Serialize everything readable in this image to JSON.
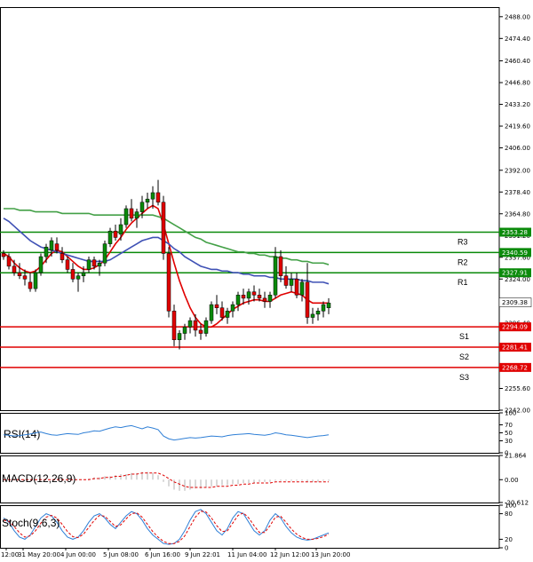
{
  "chart_data": [
    {
      "type": "candlestick",
      "title": "",
      "xlabel": "",
      "ylabel": "",
      "ylim": [
        2242.0,
        2494.0
      ],
      "price_ticks": [
        "2488.00",
        "2474.40",
        "2460.40",
        "2446.80",
        "2433.20",
        "2419.60",
        "2406.00",
        "2392.00",
        "2378.40",
        "2364.80",
        "2351.20",
        "2337.60",
        "2324.00",
        "2310.40",
        "2296.40",
        "2269.20",
        "2255.60",
        "2242.00"
      ],
      "x_tick_labels": [
        "12:00",
        "31 May 20:00",
        "4 Jun 00:00",
        "5 Jun 08:00",
        "6 Jun 16:00",
        "9 Jun 22:01",
        "11 Jun 04:00",
        "12 Jun 12:00",
        "13 Jun 20:00"
      ],
      "last_price": {
        "value": 2309.38,
        "label": "2309.38",
        "color": "#000000"
      },
      "levels": [
        {
          "name": "R3",
          "value": 2353.28,
          "label": "2353.28",
          "color": "#0a8a0a"
        },
        {
          "name": "R2",
          "value": 2340.59,
          "label": "2340.59",
          "color": "#0a8a0a"
        },
        {
          "name": "R1",
          "value": 2327.91,
          "label": "2327.91",
          "color": "#0a8a0a"
        },
        {
          "name": "S1",
          "value": 2294.09,
          "label": "2294.09",
          "color": "#e00000"
        },
        {
          "name": "S2",
          "value": 2281.41,
          "label": "2281.41",
          "color": "#e00000"
        },
        {
          "name": "S3",
          "value": 2268.72,
          "label": "2268.72",
          "color": "#e00000"
        }
      ],
      "candles": [
        [
          2340,
          2342,
          2336,
          2338
        ],
        [
          2338,
          2340,
          2330,
          2332
        ],
        [
          2332,
          2336,
          2326,
          2328
        ],
        [
          2328,
          2334,
          2324,
          2326
        ],
        [
          2326,
          2330,
          2320,
          2324
        ],
        [
          2322,
          2328,
          2316,
          2318
        ],
        [
          2318,
          2330,
          2316,
          2328
        ],
        [
          2328,
          2340,
          2326,
          2338
        ],
        [
          2338,
          2346,
          2334,
          2344
        ],
        [
          2342,
          2350,
          2338,
          2348
        ],
        [
          2346,
          2350,
          2340,
          2342
        ],
        [
          2340,
          2344,
          2334,
          2336
        ],
        [
          2336,
          2338,
          2328,
          2330
        ],
        [
          2330,
          2334,
          2322,
          2324
        ],
        [
          2324,
          2328,
          2316,
          2326
        ],
        [
          2326,
          2332,
          2322,
          2328
        ],
        [
          2330,
          2338,
          2328,
          2336
        ],
        [
          2336,
          2338,
          2330,
          2332
        ],
        [
          2332,
          2336,
          2326,
          2334
        ],
        [
          2334,
          2348,
          2332,
          2346
        ],
        [
          2346,
          2356,
          2344,
          2354
        ],
        [
          2354,
          2358,
          2348,
          2350
        ],
        [
          2352,
          2362,
          2348,
          2358
        ],
        [
          2358,
          2370,
          2356,
          2368
        ],
        [
          2368,
          2374,
          2360,
          2362
        ],
        [
          2362,
          2368,
          2356,
          2366
        ],
        [
          2366,
          2376,
          2362,
          2372
        ],
        [
          2372,
          2378,
          2368,
          2374
        ],
        [
          2374,
          2382,
          2368,
          2378
        ],
        [
          2378,
          2386,
          2370,
          2372
        ],
        [
          2372,
          2376,
          2336,
          2340
        ],
        [
          2340,
          2344,
          2300,
          2304
        ],
        [
          2304,
          2308,
          2282,
          2286
        ],
        [
          2286,
          2292,
          2280,
          2290
        ],
        [
          2290,
          2296,
          2286,
          2294
        ],
        [
          2294,
          2300,
          2290,
          2298
        ],
        [
          2298,
          2302,
          2288,
          2292
        ],
        [
          2292,
          2296,
          2286,
          2290
        ],
        [
          2290,
          2300,
          2288,
          2298
        ],
        [
          2298,
          2310,
          2296,
          2308
        ],
        [
          2308,
          2314,
          2302,
          2306
        ],
        [
          2306,
          2310,
          2298,
          2300
        ],
        [
          2300,
          2306,
          2296,
          2304
        ],
        [
          2304,
          2310,
          2300,
          2308
        ],
        [
          2308,
          2316,
          2304,
          2314
        ],
        [
          2314,
          2318,
          2308,
          2312
        ],
        [
          2312,
          2318,
          2308,
          2316
        ],
        [
          2316,
          2320,
          2310,
          2314
        ],
        [
          2314,
          2318,
          2310,
          2312
        ],
        [
          2312,
          2316,
          2306,
          2310
        ],
        [
          2310,
          2316,
          2306,
          2314
        ],
        [
          2314,
          2344,
          2312,
          2338
        ],
        [
          2338,
          2342,
          2322,
          2326
        ],
        [
          2326,
          2332,
          2318,
          2320
        ],
        [
          2320,
          2328,
          2316,
          2324
        ],
        [
          2324,
          2328,
          2312,
          2314
        ],
        [
          2314,
          2324,
          2310,
          2322
        ],
        [
          2322,
          2334,
          2296,
          2300
        ],
        [
          2300,
          2306,
          2296,
          2302
        ],
        [
          2302,
          2306,
          2298,
          2304
        ],
        [
          2304,
          2310,
          2300,
          2308
        ],
        [
          2306,
          2312,
          2302,
          2309
        ]
      ],
      "series": [
        {
          "values": [
            2340,
            2338,
            2334,
            2331,
            2329,
            2328,
            2329,
            2332,
            2336,
            2340,
            2342,
            2341,
            2338,
            2335,
            2332,
            2330,
            2330,
            2331,
            2333,
            2336,
            2341,
            2346,
            2350,
            2355,
            2359,
            2362,
            2365,
            2368,
            2370,
            2368,
            2358,
            2346,
            2334,
            2323,
            2314,
            2306,
            2300,
            2296,
            2294,
            2294,
            2296,
            2299,
            2302,
            2305,
            2307,
            2309,
            2310,
            2311,
            2311,
            2310,
            2310,
            2312,
            2314,
            2315,
            2316,
            2315,
            2314,
            2311,
            2309,
            2309,
            2309,
            2309
          ]
        },
        {
          "values": [
            2362,
            2360,
            2357,
            2354,
            2351,
            2348,
            2346,
            2344,
            2343,
            2342,
            2341,
            2340,
            2339,
            2338,
            2337,
            2336,
            2335,
            2335,
            2335,
            2335,
            2336,
            2338,
            2340,
            2342,
            2344,
            2346,
            2348,
            2349,
            2350,
            2350,
            2348,
            2346,
            2343,
            2341,
            2338,
            2336,
            2334,
            2332,
            2331,
            2330,
            2330,
            2329,
            2329,
            2328,
            2328,
            2327,
            2327,
            2326,
            2326,
            2326,
            2325,
            2325,
            2324,
            2324,
            2324,
            2324,
            2323,
            2323,
            2322,
            2322,
            2322,
            2321
          ]
        },
        {
          "values": [
            2368,
            2368,
            2368,
            2367,
            2367,
            2367,
            2366,
            2366,
            2366,
            2366,
            2366,
            2365,
            2365,
            2365,
            2365,
            2365,
            2365,
            2364,
            2364,
            2364,
            2364,
            2364,
            2364,
            2364,
            2364,
            2364,
            2364,
            2364,
            2364,
            2363,
            2362,
            2360,
            2358,
            2356,
            2354,
            2352,
            2350,
            2349,
            2347,
            2346,
            2345,
            2344,
            2343,
            2342,
            2341,
            2341,
            2340,
            2340,
            2339,
            2339,
            2338,
            2338,
            2337,
            2337,
            2336,
            2336,
            2335,
            2335,
            2334,
            2334,
            2334,
            2333
          ]
        }
      ]
    },
    {
      "type": "line",
      "title": "RSI(14)",
      "ylim": [
        0,
        100
      ],
      "y_ticks": [
        "100",
        "70",
        "50",
        "30",
        "0"
      ],
      "series": [
        {
          "values": [
            45,
            44,
            42,
            43,
            45,
            47,
            50,
            52,
            48,
            45,
            44,
            46,
            48,
            47,
            46,
            50,
            52,
            55,
            54,
            58,
            62,
            65,
            63,
            66,
            68,
            64,
            60,
            65,
            62,
            58,
            42,
            35,
            32,
            34,
            36,
            38,
            37,
            38,
            40,
            42,
            41,
            40,
            43,
            45,
            46,
            47,
            48,
            46,
            45,
            44,
            46,
            50,
            48,
            45,
            44,
            42,
            40,
            38,
            40,
            42,
            43,
            45
          ]
        }
      ]
    },
    {
      "type": "bar",
      "title": "MACD(12,26,9)",
      "ylim": [
        -20.612,
        21.864
      ],
      "y_ticks": [
        "21.864",
        "0.00",
        "-20.612"
      ],
      "values": [
        0,
        0,
        0,
        0,
        0,
        0,
        0,
        0,
        0,
        0,
        0,
        0,
        0,
        0,
        0,
        0,
        1,
        2,
        2,
        3,
        3,
        4,
        5,
        5,
        6,
        6,
        7,
        7,
        6,
        4,
        -2,
        -6,
        -9,
        -10,
        -10,
        -9,
        -8,
        -8,
        -7,
        -6,
        -6,
        -5,
        -5,
        -4,
        -4,
        -3,
        -3,
        -3,
        -2,
        -2,
        -2,
        -1,
        -1,
        -1,
        -1,
        -1,
        -1,
        -2,
        -2,
        -2,
        -1,
        -1
      ],
      "series": [
        {
          "values": [
            0,
            0,
            0,
            0,
            0,
            0,
            0,
            0,
            0,
            0,
            0,
            0,
            0,
            0,
            0,
            0,
            0,
            1,
            1,
            2,
            2,
            3,
            3,
            4,
            5,
            5,
            6,
            6,
            6,
            6,
            4,
            1,
            -2,
            -4,
            -6,
            -7,
            -7,
            -7,
            -7,
            -7,
            -6,
            -6,
            -6,
            -5,
            -5,
            -4,
            -4,
            -3,
            -3,
            -3,
            -3,
            -2,
            -2,
            -2,
            -2,
            -2,
            -2,
            -2,
            -2,
            -2,
            -2,
            -2
          ]
        }
      ]
    },
    {
      "type": "line",
      "title": "Stoch(9,6,3)",
      "ylim": [
        0,
        100
      ],
      "y_ticks": [
        "100",
        "80",
        "20",
        "0"
      ],
      "series": [
        {
          "values": [
            70,
            60,
            40,
            25,
            20,
            30,
            50,
            70,
            80,
            75,
            60,
            40,
            25,
            20,
            25,
            40,
            60,
            75,
            80,
            70,
            55,
            45,
            60,
            75,
            85,
            80,
            65,
            45,
            30,
            20,
            10,
            8,
            10,
            20,
            40,
            65,
            85,
            90,
            80,
            60,
            40,
            30,
            45,
            70,
            85,
            80,
            60,
            40,
            30,
            40,
            65,
            80,
            70,
            50,
            35,
            25,
            20,
            18,
            20,
            25,
            30,
            35
          ]
        },
        {
          "values": [
            65,
            62,
            50,
            35,
            25,
            28,
            40,
            58,
            72,
            76,
            70,
            55,
            38,
            26,
            24,
            32,
            48,
            64,
            76,
            74,
            62,
            50,
            54,
            68,
            80,
            82,
            72,
            55,
            38,
            25,
            15,
            10,
            10,
            15,
            28,
            50,
            72,
            86,
            84,
            70,
            52,
            38,
            40,
            58,
            76,
            82,
            70,
            52,
            36,
            36,
            52,
            72,
            74,
            60,
            44,
            32,
            24,
            20,
            20,
            22,
            26,
            32
          ]
        }
      ]
    }
  ],
  "colors": {
    "bull_candle": "#0a8a0a",
    "bear_candle": "#e00000",
    "ma_red": "#e00000",
    "ma_blue": "#3f51b5",
    "ma_green": "#43a047",
    "rsi_line": "#2f7fd6",
    "stoch_main": "#2f7fd6",
    "stoch_signal": "#e00000",
    "macd_signal": "#e00000",
    "macd_hist": "#b0b0b0"
  }
}
